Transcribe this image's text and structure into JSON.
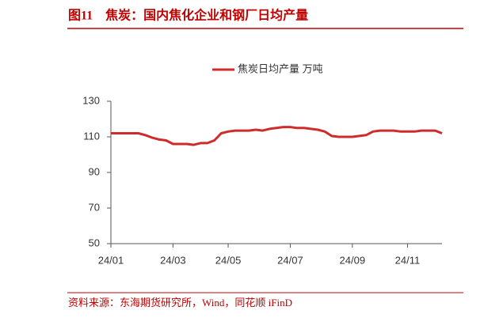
{
  "chart_data": {
    "type": "line",
    "title": "图11　焦炭：国内焦化企业和钢厂日均产量",
    "source": "资料来源：东海期货研究所，Wind，同花顺 iFinD",
    "categories": [
      "24/01",
      null,
      null,
      null,
      null,
      null,
      null,
      null,
      null,
      "24/03",
      null,
      null,
      null,
      null,
      null,
      null,
      null,
      "24/05",
      null,
      null,
      null,
      null,
      null,
      null,
      null,
      null,
      "24/07",
      null,
      null,
      null,
      null,
      null,
      null,
      null,
      null,
      "24/09",
      null,
      null,
      null,
      null,
      null,
      null,
      null,
      "24/11",
      null,
      null,
      null,
      null,
      null
    ],
    "series": [
      {
        "name": "焦炭日均产量 万吨",
        "color": "#d02b2b",
        "values": [
          112,
          112,
          112,
          112,
          112,
          111,
          109.5,
          108.5,
          108,
          106,
          106,
          106,
          105.5,
          106.5,
          106.5,
          108,
          112,
          113,
          113.5,
          113.5,
          113.5,
          114,
          113.5,
          114.5,
          115,
          115.5,
          115.5,
          115,
          115,
          114.5,
          114,
          113,
          110.5,
          110,
          110,
          110,
          110.5,
          111,
          113,
          113.5,
          113.5,
          113.5,
          113,
          113,
          113,
          113.5,
          113.5,
          113.5,
          112
        ]
      }
    ],
    "ylim": [
      50,
      130
    ],
    "yticks": [
      50,
      70,
      90,
      110,
      130
    ],
    "grid": false
  }
}
